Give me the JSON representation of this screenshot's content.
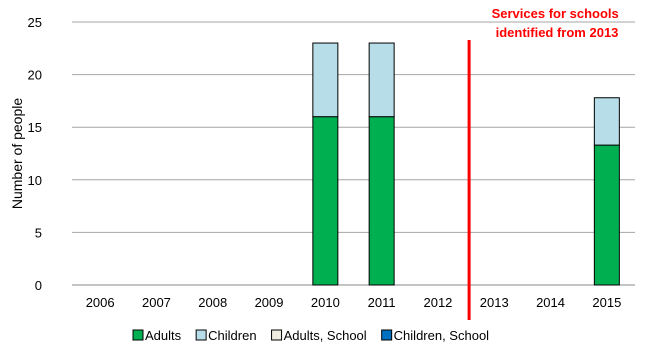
{
  "chart_data": {
    "type": "bar",
    "stacked": true,
    "title": "",
    "xlabel": "",
    "ylabel": "Number of people",
    "categories": [
      "2006",
      "2007",
      "2008",
      "2009",
      "2010",
      "2011",
      "2012",
      "2013",
      "2014",
      "2015"
    ],
    "series": [
      {
        "name": "Adults",
        "color": "#00b050",
        "values": [
          0,
          0,
          0,
          0,
          16,
          16,
          0,
          0,
          0,
          13.3
        ]
      },
      {
        "name": "Children",
        "color": "#b7dee8",
        "values": [
          0,
          0,
          0,
          0,
          7,
          7,
          0,
          0,
          0,
          4.5
        ]
      },
      {
        "name": "Adults, School",
        "color": "#eeece1",
        "values": [
          0,
          0,
          0,
          0,
          0,
          0,
          0,
          0,
          0,
          0
        ]
      },
      {
        "name": "Children, School",
        "color": "#0070c0",
        "values": [
          0,
          0,
          0,
          0,
          0,
          0,
          0,
          0,
          0,
          0
        ]
      }
    ],
    "ylim": [
      0,
      25
    ],
    "yticks": [
      "0",
      "5",
      "10",
      "15",
      "20",
      "25"
    ],
    "grid": true,
    "legend": "bottom",
    "annotation": {
      "lines": [
        "Services for schools",
        "identified from 2013"
      ],
      "color": "#ff0000",
      "marker_between": [
        "2012",
        "2013"
      ]
    }
  }
}
